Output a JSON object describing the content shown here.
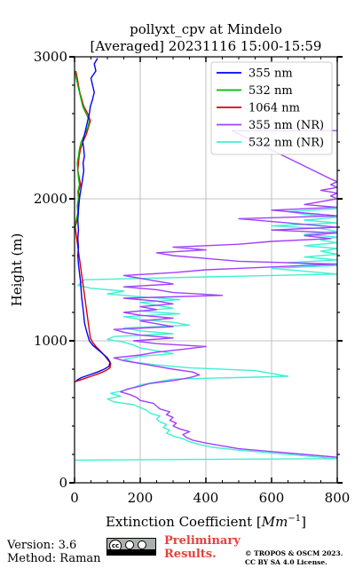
{
  "footer": {
    "version": "Version: 3.6",
    "method": "Method: Raman",
    "preliminary_line1": "Preliminary",
    "preliminary_line2": "Results.",
    "copyright_line1": "© TROPOS & OSCM 2023.",
    "copyright_line2": "CC BY SA 4.0 License.",
    "license_badge": "cc-by-sa-icon"
  },
  "chart_data": {
    "type": "line",
    "title": "pollyxt_cpv at Mindelo",
    "subtitle": "[Averaged] 20231116 15:00-15:59",
    "xlabel": "Extinction Coefficient [Mm^-1]",
    "ylabel": "Height (m)",
    "xlim": [
      0,
      800
    ],
    "ylim": [
      0,
      3000
    ],
    "xticks": [
      0,
      200,
      400,
      600,
      800
    ],
    "yticks": [
      0,
      1000,
      2000,
      3000
    ],
    "grid": true,
    "legend_position": "top-right",
    "series": [
      {
        "name": "355 nm",
        "color": "#0000ff",
        "points": [
          [
            5,
            720
          ],
          [
            20,
            740
          ],
          [
            45,
            760
          ],
          [
            70,
            780
          ],
          [
            90,
            800
          ],
          [
            105,
            820
          ],
          [
            108,
            850
          ],
          [
            100,
            880
          ],
          [
            85,
            910
          ],
          [
            70,
            940
          ],
          [
            55,
            970
          ],
          [
            45,
            1000
          ],
          [
            40,
            1040
          ],
          [
            35,
            1080
          ],
          [
            30,
            1130
          ],
          [
            28,
            1180
          ],
          [
            25,
            1240
          ],
          [
            22,
            1300
          ],
          [
            20,
            1360
          ],
          [
            18,
            1420
          ],
          [
            15,
            1480
          ],
          [
            12,
            1540
          ],
          [
            10,
            1600
          ],
          [
            12,
            1660
          ],
          [
            10,
            1720
          ],
          [
            12,
            1780
          ],
          [
            10,
            1850
          ],
          [
            12,
            1920
          ],
          [
            15,
            2000
          ],
          [
            18,
            2050
          ],
          [
            22,
            2100
          ],
          [
            25,
            2150
          ],
          [
            28,
            2200
          ],
          [
            26,
            2250
          ],
          [
            30,
            2300
          ],
          [
            28,
            2350
          ],
          [
            25,
            2400
          ],
          [
            30,
            2450
          ],
          [
            35,
            2500
          ],
          [
            40,
            2550
          ],
          [
            45,
            2600
          ],
          [
            48,
            2650
          ],
          [
            55,
            2700
          ],
          [
            60,
            2750
          ],
          [
            55,
            2800
          ],
          [
            50,
            2850
          ],
          [
            65,
            2900
          ],
          [
            60,
            2950
          ],
          [
            70,
            2990
          ]
        ]
      },
      {
        "name": "532 nm",
        "color": "#00bb00",
        "points": [
          [
            2,
            1800
          ],
          [
            5,
            1850
          ],
          [
            10,
            1900
          ],
          [
            8,
            1950
          ],
          [
            12,
            2000
          ],
          [
            10,
            2050
          ],
          [
            15,
            2100
          ],
          [
            12,
            2150
          ],
          [
            10,
            2200
          ],
          [
            8,
            2250
          ],
          [
            12,
            2300
          ],
          [
            15,
            2350
          ],
          [
            20,
            2400
          ],
          [
            30,
            2450
          ],
          [
            40,
            2500
          ],
          [
            45,
            2550
          ],
          [
            35,
            2600
          ],
          [
            25,
            2650
          ],
          [
            20,
            2700
          ],
          [
            15,
            2750
          ],
          [
            10,
            2800
          ],
          [
            5,
            2850
          ],
          [
            2,
            2900
          ]
        ]
      },
      {
        "name": "1064 nm",
        "color": "#dd0000",
        "points": [
          [
            0,
            710
          ],
          [
            25,
            730
          ],
          [
            50,
            750
          ],
          [
            75,
            770
          ],
          [
            95,
            790
          ],
          [
            108,
            810
          ],
          [
            110,
            840
          ],
          [
            100,
            870
          ],
          [
            90,
            900
          ],
          [
            78,
            930
          ],
          [
            65,
            960
          ],
          [
            55,
            990
          ],
          [
            48,
            1020
          ],
          [
            2,
            1800
          ],
          [
            8,
            1850
          ],
          [
            12,
            1900
          ],
          [
            10,
            1950
          ],
          [
            15,
            2000
          ],
          [
            12,
            2050
          ],
          [
            18,
            2100
          ],
          [
            14,
            2150
          ],
          [
            10,
            2200
          ],
          [
            12,
            2250
          ],
          [
            14,
            2300
          ],
          [
            18,
            2350
          ],
          [
            25,
            2400
          ],
          [
            35,
            2450
          ],
          [
            42,
            2500
          ],
          [
            48,
            2550
          ],
          [
            40,
            2600
          ],
          [
            28,
            2650
          ],
          [
            22,
            2700
          ],
          [
            16,
            2750
          ],
          [
            12,
            2800
          ],
          [
            8,
            2850
          ],
          [
            4,
            2900
          ]
        ]
      },
      {
        "name": "355 nm (NR)",
        "color": "#a040ff",
        "points": [
          [
            800,
            180
          ],
          [
            700,
            200
          ],
          [
            600,
            220
          ],
          [
            500,
            240
          ],
          [
            450,
            260
          ],
          [
            400,
            280
          ],
          [
            360,
            300
          ],
          [
            340,
            320
          ],
          [
            330,
            340
          ],
          [
            350,
            360
          ],
          [
            320,
            380
          ],
          [
            300,
            400
          ],
          [
            310,
            420
          ],
          [
            290,
            440
          ],
          [
            300,
            460
          ],
          [
            280,
            480
          ],
          [
            290,
            500
          ],
          [
            260,
            520
          ],
          [
            250,
            540
          ],
          [
            240,
            560
          ],
          [
            200,
            580
          ],
          [
            190,
            600
          ],
          [
            170,
            620
          ],
          [
            140,
            640
          ],
          [
            160,
            660
          ],
          [
            200,
            680
          ],
          [
            230,
            700
          ],
          [
            300,
            720
          ],
          [
            350,
            740
          ],
          [
            380,
            760
          ],
          [
            360,
            780
          ],
          [
            300,
            800
          ],
          [
            250,
            820
          ],
          [
            200,
            840
          ],
          [
            150,
            860
          ],
          [
            120,
            880
          ],
          [
            200,
            900
          ],
          [
            250,
            920
          ],
          [
            330,
            940
          ],
          [
            400,
            960
          ],
          [
            250,
            980
          ],
          [
            180,
            1000
          ],
          [
            300,
            1020
          ],
          [
            200,
            1040
          ],
          [
            150,
            1060
          ],
          [
            120,
            1080
          ],
          [
            300,
            1100
          ],
          [
            250,
            1120
          ],
          [
            200,
            1140
          ],
          [
            300,
            1160
          ],
          [
            200,
            1180
          ],
          [
            150,
            1200
          ],
          [
            250,
            1220
          ],
          [
            200,
            1240
          ],
          [
            300,
            1260
          ],
          [
            250,
            1280
          ],
          [
            150,
            1300
          ],
          [
            450,
            1320
          ],
          [
            300,
            1340
          ],
          [
            250,
            1360
          ],
          [
            150,
            1380
          ],
          [
            300,
            1400
          ],
          [
            250,
            1420
          ],
          [
            200,
            1440
          ],
          [
            150,
            1460
          ],
          [
            300,
            1480
          ],
          [
            400,
            1500
          ],
          [
            600,
            1520
          ],
          [
            800,
            1540
          ],
          [
            500,
            1560
          ],
          [
            400,
            1580
          ],
          [
            300,
            1600
          ],
          [
            250,
            1620
          ],
          [
            400,
            1640
          ],
          [
            300,
            1660
          ],
          [
            500,
            1680
          ],
          [
            600,
            1700
          ],
          [
            780,
            1720
          ],
          [
            700,
            1740
          ],
          [
            800,
            1760
          ],
          [
            600,
            1780
          ],
          [
            800,
            1800
          ],
          [
            700,
            1820
          ],
          [
            600,
            1840
          ],
          [
            500,
            1860
          ],
          [
            800,
            1880
          ],
          [
            700,
            1900
          ],
          [
            600,
            1920
          ],
          [
            800,
            1940
          ],
          [
            700,
            1960
          ],
          [
            750,
            1980
          ],
          [
            800,
            2000
          ],
          [
            780,
            2020
          ],
          [
            800,
            2040
          ],
          [
            750,
            2060
          ],
          [
            800,
            2080
          ],
          [
            780,
            2100
          ],
          [
            800,
            2120
          ],
          [
            780,
            2140
          ],
          [
            480,
            2480
          ],
          [
            800,
            2480
          ]
        ]
      },
      {
        "name": "532 nm (NR)",
        "color": "#40f0d0",
        "points": [
          [
            0,
            160
          ],
          [
            800,
            170
          ],
          [
            700,
            190
          ],
          [
            600,
            210
          ],
          [
            500,
            230
          ],
          [
            420,
            250
          ],
          [
            380,
            270
          ],
          [
            350,
            290
          ],
          [
            330,
            310
          ],
          [
            300,
            330
          ],
          [
            280,
            350
          ],
          [
            290,
            370
          ],
          [
            270,
            390
          ],
          [
            280,
            410
          ],
          [
            260,
            430
          ],
          [
            250,
            450
          ],
          [
            260,
            470
          ],
          [
            230,
            490
          ],
          [
            220,
            510
          ],
          [
            200,
            530
          ],
          [
            180,
            550
          ],
          [
            120,
            570
          ],
          [
            100,
            590
          ],
          [
            140,
            610
          ],
          [
            110,
            630
          ],
          [
            150,
            650
          ],
          [
            180,
            670
          ],
          [
            200,
            690
          ],
          [
            250,
            710
          ],
          [
            300,
            730
          ],
          [
            650,
            750
          ],
          [
            600,
            770
          ],
          [
            550,
            790
          ],
          [
            350,
            810
          ],
          [
            250,
            830
          ],
          [
            180,
            850
          ],
          [
            150,
            870
          ],
          [
            200,
            890
          ],
          [
            300,
            910
          ],
          [
            250,
            930
          ],
          [
            200,
            950
          ],
          [
            180,
            970
          ],
          [
            150,
            990
          ],
          [
            100,
            1010
          ],
          [
            120,
            1030
          ],
          [
            300,
            1050
          ],
          [
            200,
            1070
          ],
          [
            150,
            1090
          ],
          [
            350,
            1110
          ],
          [
            300,
            1130
          ],
          [
            200,
            1150
          ],
          [
            150,
            1170
          ],
          [
            320,
            1190
          ],
          [
            200,
            1210
          ],
          [
            300,
            1230
          ],
          [
            250,
            1250
          ],
          [
            200,
            1270
          ],
          [
            320,
            1290
          ],
          [
            200,
            1310
          ],
          [
            100,
            1330
          ],
          [
            150,
            1350
          ],
          [
            50,
            1370
          ],
          [
            10,
            1390
          ],
          [
            20,
            1410
          ],
          [
            30,
            1430
          ],
          [
            400,
            1450
          ],
          [
            800,
            1470
          ],
          [
            700,
            1490
          ],
          [
            600,
            1510
          ],
          [
            800,
            1530
          ],
          [
            650,
            1550
          ],
          [
            800,
            1570
          ],
          [
            700,
            1590
          ],
          [
            800,
            1610
          ],
          [
            750,
            1630
          ],
          [
            800,
            1650
          ],
          [
            700,
            1670
          ],
          [
            800,
            1690
          ],
          [
            750,
            1710
          ],
          [
            800,
            1730
          ],
          [
            700,
            1750
          ],
          [
            800,
            1770
          ],
          [
            750,
            1790
          ],
          [
            600,
            1810
          ],
          [
            800,
            1830
          ],
          [
            700,
            1850
          ],
          [
            800,
            1870
          ],
          [
            700,
            1890
          ],
          [
            650,
            1910
          ],
          [
            800,
            1930
          ]
        ]
      }
    ]
  }
}
